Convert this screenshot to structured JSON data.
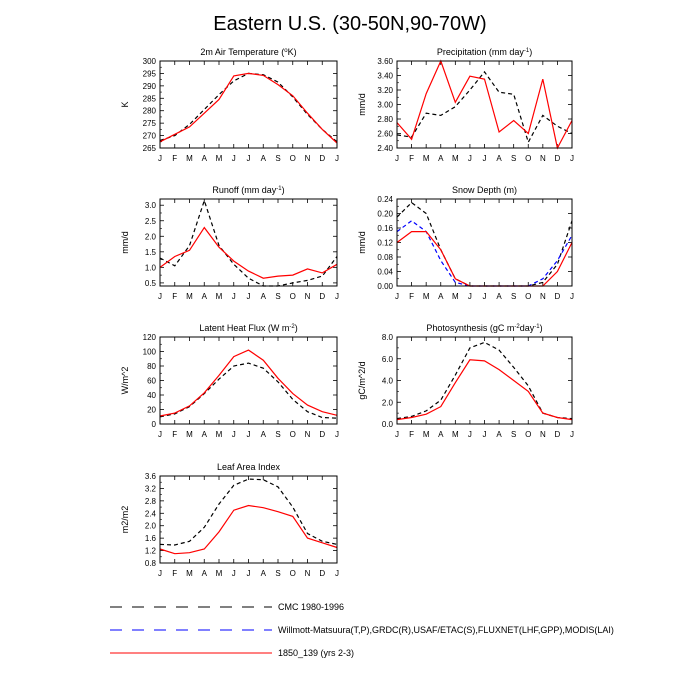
{
  "page": {
    "title": "Eastern U.S. (30-50N,90-70W)"
  },
  "months": [
    "J",
    "F",
    "M",
    "A",
    "M",
    "J",
    "J",
    "A",
    "S",
    "O",
    "N",
    "D",
    "J"
  ],
  "legend": {
    "items": [
      {
        "label": "CMC 1980-1996",
        "color": "#000000",
        "dash": "long"
      },
      {
        "label": "Willmott-Matsuura(T,P),GRDC(R),USAF/ETAC(S),FLUXNET(LHF,GPP),MODIS(LAI)",
        "color": "#0000ff",
        "dash": "long"
      },
      {
        "label": "1850_139 (yrs 2-3)",
        "color": "#ff0000",
        "dash": "solid"
      }
    ]
  },
  "chart_data": [
    {
      "type": "line",
      "title": "2m Air Temperature (°K)",
      "title_parts": {
        "pre": "2m Air Temperature (",
        "sup": "o",
        "post": "K)"
      },
      "ylabel": "K",
      "ylim": [
        265,
        300
      ],
      "yticks": [
        "265",
        "270",
        "275",
        "280",
        "285",
        "290",
        "295",
        "300"
      ],
      "yticks_values": [
        265,
        270,
        275,
        280,
        285,
        290,
        295,
        300
      ],
      "series": [
        {
          "ref": 0,
          "style": "dash",
          "color": "#000000",
          "values": [
            268.0,
            270.0,
            274.5,
            280.5,
            286.5,
            292.0,
            295.0,
            294.5,
            291.5,
            285.5,
            278.5,
            272.5,
            267.5
          ]
        },
        {
          "ref": 2,
          "style": "solid",
          "color": "#ff0000",
          "values": [
            267.5,
            270.5,
            273.5,
            279.0,
            284.5,
            294.0,
            295.0,
            294.2,
            290.5,
            286.0,
            279.0,
            272.5,
            267.0
          ]
        }
      ]
    },
    {
      "type": "line",
      "title": "Precipitation (mm day-1)",
      "title_parts": {
        "pre": "Precipitation (mm day",
        "sup": "-1",
        "post": ")"
      },
      "ylabel": "mm/d",
      "ylim": [
        2.4,
        3.6
      ],
      "yticks": [
        "2.40",
        "2.60",
        "2.80",
        "3.00",
        "3.20",
        "3.40",
        "3.60"
      ],
      "yticks_values": [
        2.4,
        2.6,
        2.8,
        3.0,
        3.2,
        3.4,
        3.6
      ],
      "series": [
        {
          "ref": 0,
          "style": "dash",
          "color": "#000000",
          "values": [
            2.58,
            2.55,
            2.88,
            2.85,
            2.97,
            3.2,
            3.45,
            3.17,
            3.14,
            2.48,
            2.85,
            2.7,
            2.6
          ]
        },
        {
          "ref": 2,
          "style": "solid",
          "color": "#ff0000",
          "values": [
            2.75,
            2.52,
            3.15,
            3.6,
            3.03,
            3.39,
            3.35,
            2.62,
            2.78,
            2.6,
            3.35,
            2.4,
            2.78
          ]
        }
      ]
    },
    {
      "type": "line",
      "title": "Runoff (mm day-1)",
      "title_parts": {
        "pre": "Runoff (mm day",
        "sup": "-1",
        "post": ")"
      },
      "ylabel": "mm/d",
      "ylim": [
        0.4,
        3.2
      ],
      "yticks": [
        "0.5",
        "1.0",
        "1.5",
        "2.0",
        "2.5",
        "3.0"
      ],
      "yticks_values": [
        0.5,
        1.0,
        1.5,
        2.0,
        2.5,
        3.0
      ],
      "series": [
        {
          "ref": 0,
          "style": "dash",
          "color": "#000000",
          "values": [
            1.3,
            1.05,
            1.7,
            3.15,
            1.7,
            1.1,
            0.65,
            0.4,
            0.4,
            0.5,
            0.58,
            0.72,
            1.35
          ]
        },
        {
          "ref": 2,
          "style": "solid",
          "color": "#ff0000",
          "values": [
            1.0,
            1.35,
            1.55,
            2.28,
            1.65,
            1.2,
            0.88,
            0.65,
            0.72,
            0.75,
            0.95,
            0.82,
            1.1
          ]
        }
      ]
    },
    {
      "type": "line",
      "title": "Snow Depth (m)",
      "title_parts": {
        "pre": "Snow Depth (m)",
        "sup": "",
        "post": ""
      },
      "ylabel": "mm/d",
      "ylim": [
        0,
        0.24
      ],
      "yticks": [
        "0.00",
        "0.04",
        "0.08",
        "0.12",
        "0.16",
        "0.20",
        "0.24"
      ],
      "yticks_values": [
        0,
        0.04,
        0.08,
        0.12,
        0.16,
        0.2,
        0.24
      ],
      "series": [
        {
          "ref": 0,
          "style": "dash",
          "color": "#000000",
          "values": [
            0.19,
            0.23,
            0.2,
            0.1,
            0.02,
            0.0,
            0.0,
            0.0,
            0.0,
            0.0,
            0.01,
            0.06,
            0.18
          ]
        },
        {
          "ref": 1,
          "style": "dash",
          "color": "#0000ff",
          "values": [
            0.15,
            0.18,
            0.15,
            0.07,
            0.01,
            0.0,
            0.0,
            0.0,
            0.0,
            0.0,
            0.02,
            0.07,
            0.14
          ]
        },
        {
          "ref": 2,
          "style": "solid",
          "color": "#ff0000",
          "values": [
            0.12,
            0.15,
            0.15,
            0.1,
            0.02,
            0.0,
            0.0,
            0.0,
            0.0,
            0.0,
            0.0,
            0.04,
            0.12
          ]
        }
      ]
    },
    {
      "type": "line",
      "title": "Latent Heat Flux (W m-2)",
      "title_parts": {
        "pre": "Latent Heat Flux (W m",
        "sup": "-2",
        "post": ")"
      },
      "ylabel": "W/m^2",
      "ylim": [
        0,
        120
      ],
      "yticks": [
        "0",
        "20",
        "40",
        "60",
        "80",
        "100",
        "120"
      ],
      "yticks_values": [
        0,
        20,
        40,
        60,
        80,
        100,
        120
      ],
      "series": [
        {
          "ref": 0,
          "style": "dash",
          "color": "#000000",
          "values": [
            10,
            14,
            24,
            42,
            62,
            80,
            84,
            77,
            58,
            34,
            17,
            9,
            8
          ]
        },
        {
          "ref": 2,
          "style": "solid",
          "color": "#ff0000",
          "values": [
            11,
            15,
            25,
            43,
            67,
            93,
            102,
            88,
            63,
            42,
            26,
            17,
            12
          ]
        }
      ]
    },
    {
      "type": "line",
      "title": "Photosynthesis (gC m-2day-1)",
      "title_parts": {
        "pre": "Photosynthesis (gC m",
        "sup": "-2",
        "post": "day",
        "sup2": "-1",
        "post2": ")"
      },
      "ylabel": "gC/m^2/d",
      "ylim": [
        0,
        8
      ],
      "yticks": [
        "0.0",
        "2.0",
        "4.0",
        "6.0",
        "8.0"
      ],
      "yticks_values": [
        0,
        2,
        4,
        6,
        8
      ],
      "series": [
        {
          "ref": 0,
          "style": "dash",
          "color": "#000000",
          "values": [
            0.5,
            0.7,
            1.2,
            2.2,
            4.5,
            7.0,
            7.5,
            6.8,
            5.2,
            3.5,
            1.0,
            0.6,
            0.5
          ]
        },
        {
          "ref": 2,
          "style": "solid",
          "color": "#ff0000",
          "values": [
            0.4,
            0.6,
            0.9,
            1.6,
            3.8,
            5.9,
            5.8,
            5.0,
            4.0,
            3.0,
            1.0,
            0.6,
            0.4
          ]
        }
      ]
    },
    {
      "type": "line",
      "title": "Leaf Area Index",
      "title_parts": {
        "pre": "Leaf Area Index",
        "sup": "",
        "post": ""
      },
      "ylabel": "m2/m2",
      "ylim": [
        0.8,
        3.6
      ],
      "yticks": [
        "0.8",
        "1.2",
        "1.6",
        "2.0",
        "2.4",
        "2.8",
        "3.2",
        "3.6"
      ],
      "yticks_values": [
        0.8,
        1.2,
        1.6,
        2.0,
        2.4,
        2.8,
        3.2,
        3.6
      ],
      "series": [
        {
          "ref": 0,
          "style": "dash",
          "color": "#000000",
          "values": [
            1.4,
            1.38,
            1.5,
            1.95,
            2.7,
            3.3,
            3.5,
            3.48,
            3.25,
            2.6,
            1.75,
            1.5,
            1.4
          ]
        },
        {
          "ref": 2,
          "style": "solid",
          "color": "#ff0000",
          "values": [
            1.25,
            1.1,
            1.13,
            1.25,
            1.8,
            2.5,
            2.65,
            2.58,
            2.45,
            2.3,
            1.6,
            1.45,
            1.3
          ]
        }
      ]
    }
  ]
}
